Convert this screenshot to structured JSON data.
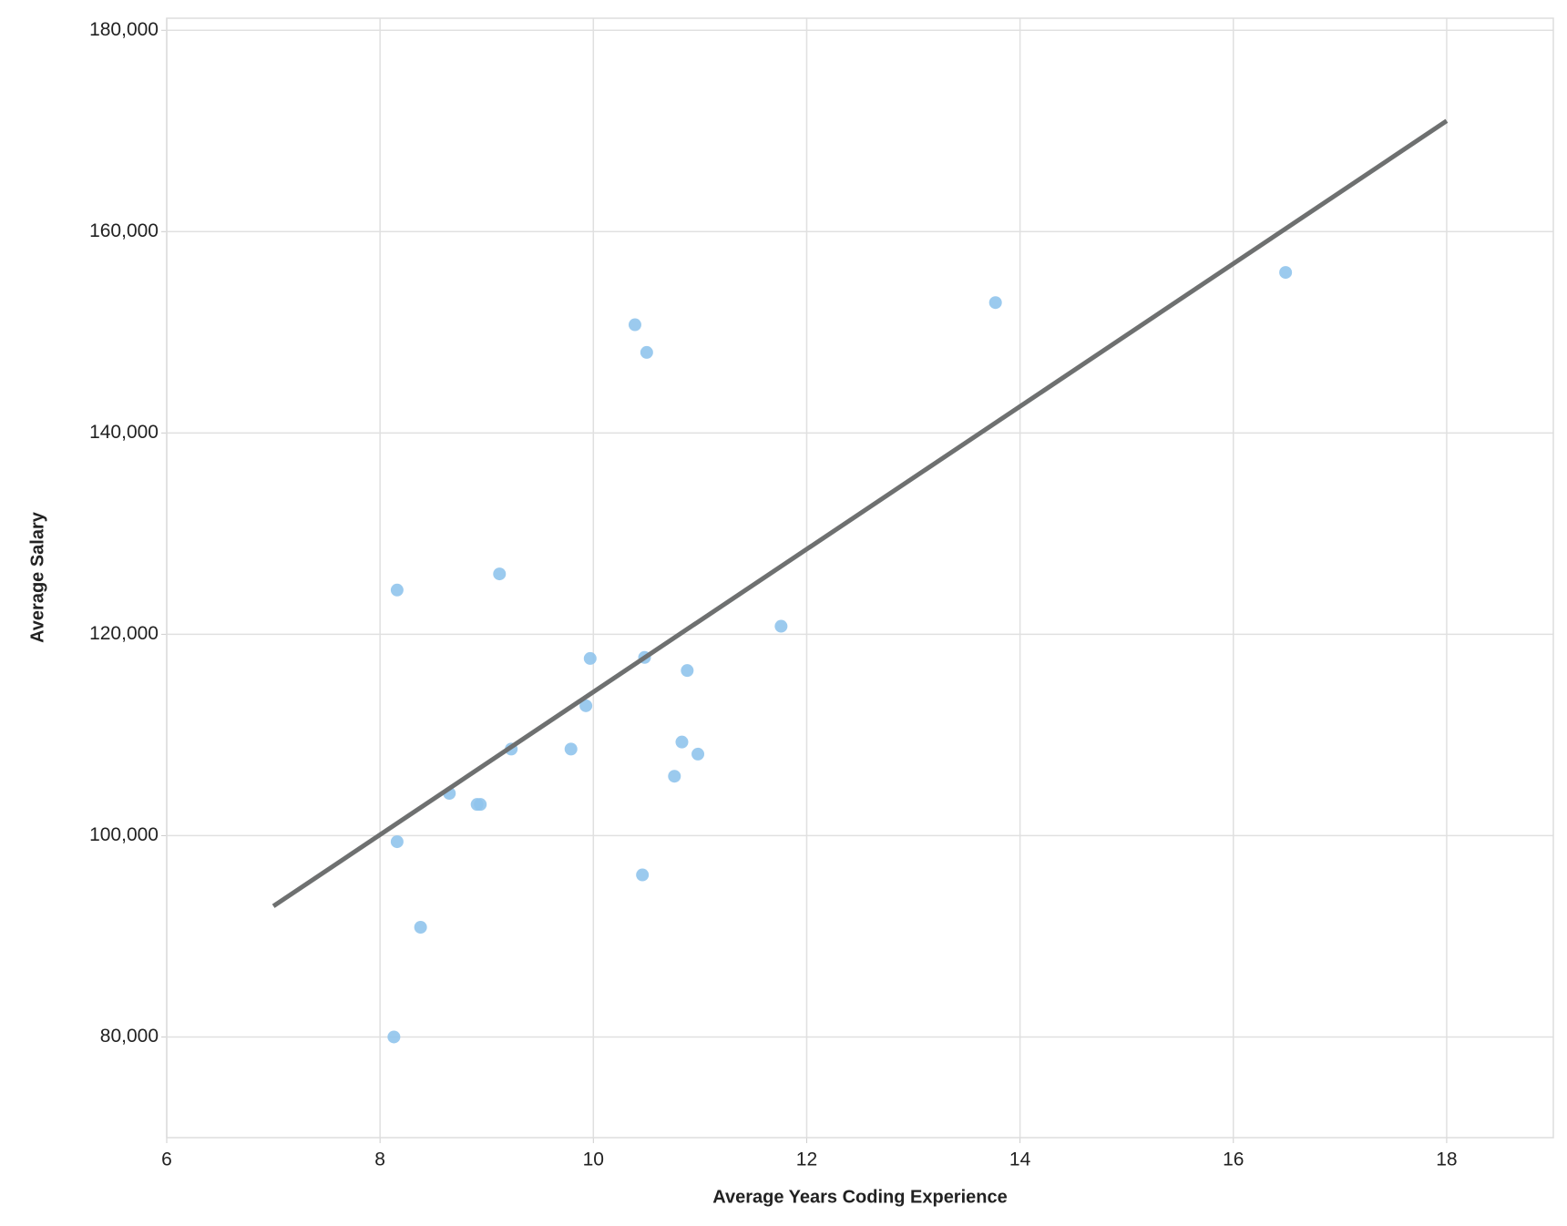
{
  "chart_data": {
    "type": "scatter",
    "x_label": "Average Years Coding Experience",
    "y_label": "Average Salary",
    "series": [
      {
        "color": "#90c4ec",
        "x": [
          16.49,
          13.77,
          10.39,
          10.5,
          9.12,
          8.16,
          11.76,
          9.97,
          10.48,
          10.88,
          9.93,
          9.23,
          9.79,
          10.83,
          10.98,
          10.76,
          8.65,
          8.91,
          8.94,
          8.16,
          10.46,
          8.38,
          8.13
        ],
        "values": [
          155950,
          152950,
          150750,
          148000,
          126000,
          124400,
          120800,
          117600,
          117700,
          116400,
          112900,
          108600,
          108600,
          109300,
          108100,
          105900,
          104200,
          103100,
          103100,
          99400,
          96100,
          90900,
          80000
        ]
      }
    ],
    "trend_line": {
      "color": "#6e7070",
      "x": [
        7,
        18
      ],
      "values": [
        93000,
        171000
      ]
    },
    "xlim": [
      6,
      19
    ],
    "xticks": [
      6,
      8,
      10,
      12,
      14,
      16,
      18
    ],
    "ylim": [
      70000,
      181200
    ],
    "yticks": [
      {
        "value": 80000,
        "label": "80,000"
      },
      {
        "value": 100000,
        "label": "100,000"
      },
      {
        "value": 120000,
        "label": "120,000"
      },
      {
        "value": 140000,
        "label": "140,000"
      },
      {
        "value": 160000,
        "label": "160,000"
      },
      {
        "value": 180000,
        "label": "180,000"
      }
    ],
    "grid": true
  }
}
